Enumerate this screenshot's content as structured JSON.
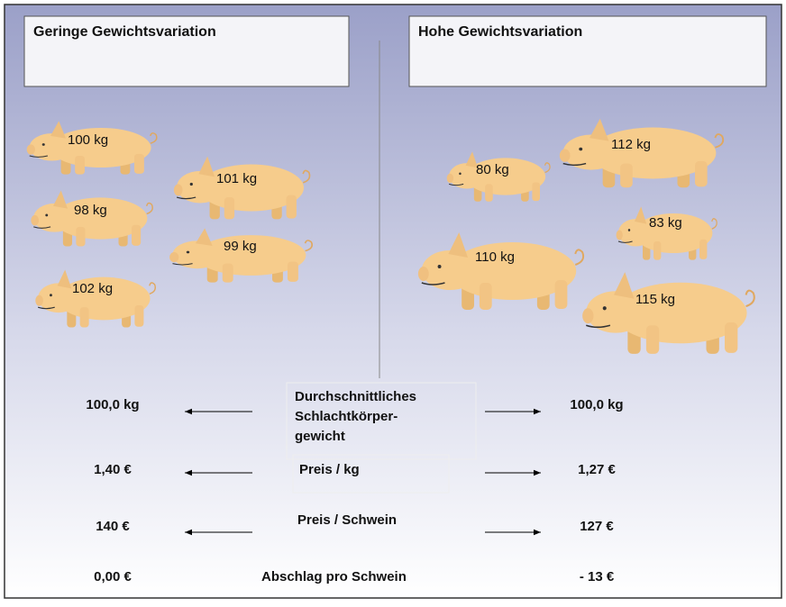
{
  "panels": [
    {
      "title": "Geringe Gewichtsvariation",
      "pigs": [
        "100 kg",
        "101 kg",
        "98 kg",
        "99 kg",
        "102 kg"
      ]
    },
    {
      "title": "Hohe Gewichtsvariation",
      "pigs": [
        "80 kg",
        "112 kg",
        "83 kg",
        "110 kg",
        "115 kg"
      ]
    }
  ],
  "rows": [
    {
      "label": [
        "Durchschnittliches",
        "Schlachtkörper-",
        "gewicht"
      ],
      "left": "100,0 kg",
      "right": "100,0 kg"
    },
    {
      "label": [
        "Preis / kg"
      ],
      "left": "1,40 €",
      "right": "1,27 €"
    },
    {
      "label": [
        "Preis / Schwein"
      ],
      "left": "140 €",
      "right": "127 €"
    },
    {
      "label": [
        "Abschlag pro Schwein"
      ],
      "left": "0,00 €",
      "right": "- 13 €"
    }
  ]
}
